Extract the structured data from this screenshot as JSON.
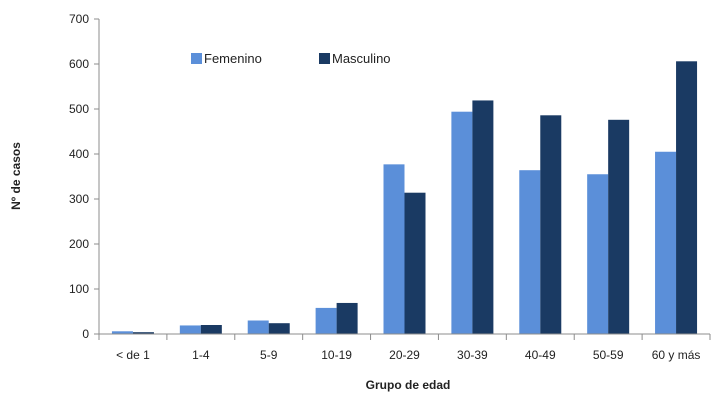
{
  "chart_data": {
    "type": "bar",
    "title": "",
    "xlabel": "Grupo de edad",
    "ylabel": "Nº de casos",
    "ylim": [
      0,
      700
    ],
    "yticks": [
      0,
      100,
      200,
      300,
      400,
      500,
      600,
      700
    ],
    "grid": false,
    "legend_position": "top-left",
    "categories": [
      "< de 1",
      "1-4",
      "5-9",
      "10-19",
      "20-29",
      "30-39",
      "40-49",
      "50-59",
      "60 y más"
    ],
    "series": [
      {
        "name": "Femenino",
        "color": "#5b8fd9",
        "values": [
          6,
          19,
          30,
          58,
          377,
          494,
          364,
          355,
          405
        ]
      },
      {
        "name": "Masculino",
        "color": "#1a3a63",
        "values": [
          4,
          20,
          24,
          69,
          314,
          519,
          486,
          476,
          606
        ]
      }
    ]
  }
}
